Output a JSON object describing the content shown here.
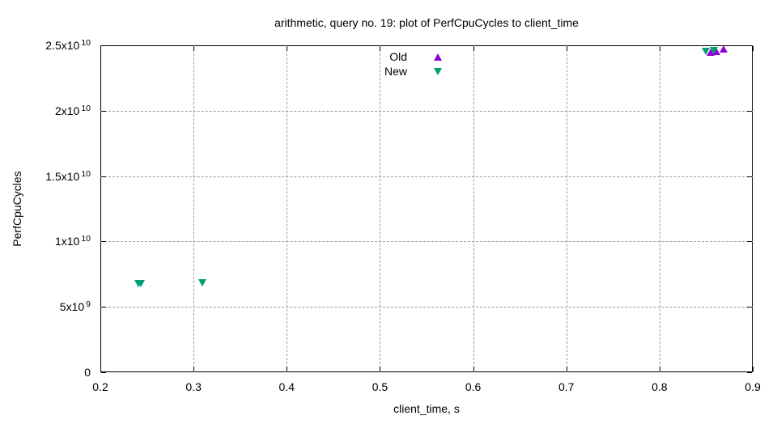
{
  "chart_data": {
    "type": "scatter",
    "title": "arithmetic, query no. 19: plot of PerfCpuCycles to client_time",
    "xlabel": "client_time, s",
    "ylabel": "PerfCpuCycles",
    "xlim": [
      0.2,
      0.9
    ],
    "ylim": [
      0,
      25000000000.0
    ],
    "x_ticks": [
      0.2,
      0.3,
      0.4,
      0.5,
      0.6,
      0.7,
      0.8,
      0.9
    ],
    "x_tick_labels": [
      "0.2",
      "0.3",
      "0.4",
      "0.5",
      "0.6",
      "0.7",
      "0.8",
      "0.9"
    ],
    "y_ticks": [
      0,
      5000000000.0,
      10000000000.0,
      15000000000.0,
      20000000000.0,
      25000000000.0
    ],
    "y_tick_labels": [
      "0",
      "5x10^9",
      "1x10^10",
      "1.5x10^10",
      "2x10^10",
      "2.5x10^10"
    ],
    "grid": true,
    "grid_color": "#9a9a9a",
    "legend_position": "inside-top-center",
    "series": [
      {
        "name": "Old",
        "marker": "triangle-up",
        "color": "#9400d3",
        "points": [
          [
            0.8555,
            24450000000.0
          ],
          [
            0.861,
            24520000000.0
          ],
          [
            0.8695,
            24750000000.0
          ]
        ]
      },
      {
        "name": "New",
        "marker": "triangle-down",
        "color": "#009e73",
        "points": [
          [
            0.241,
            6800000000.0
          ],
          [
            0.2435,
            6800000000.0
          ],
          [
            0.31,
            6820000000.0
          ],
          [
            0.85,
            24550000000.0
          ],
          [
            0.8585,
            24620000000.0
          ]
        ]
      }
    ]
  }
}
